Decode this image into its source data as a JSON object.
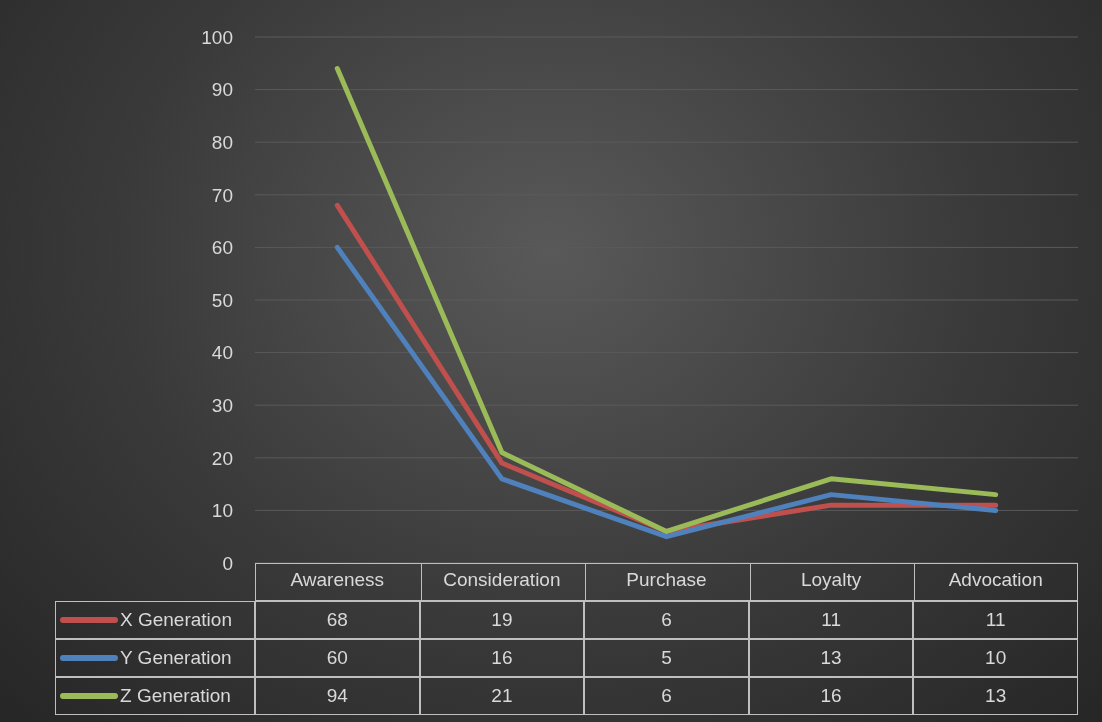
{
  "chart_data": {
    "type": "line",
    "categories": [
      "Awareness",
      "Consideration",
      "Purchase",
      "Loyalty",
      "Advocation"
    ],
    "series": [
      {
        "name": "X Generation",
        "color": "#c0504d",
        "values": [
          68,
          19,
          6,
          11,
          11
        ]
      },
      {
        "name": "Y Generation",
        "color": "#4f81bd",
        "values": [
          60,
          16,
          5,
          13,
          10
        ]
      },
      {
        "name": "Z Generation",
        "color": "#9bbb59",
        "values": [
          94,
          21,
          6,
          16,
          13
        ]
      }
    ],
    "ylim": [
      0,
      100
    ],
    "yticks": [
      0,
      10,
      20,
      30,
      40,
      50,
      60,
      70,
      80,
      90,
      100
    ],
    "grid": "y",
    "legend": "bottom",
    "data_labels": true,
    "marker": "none",
    "line_style": "solid"
  }
}
